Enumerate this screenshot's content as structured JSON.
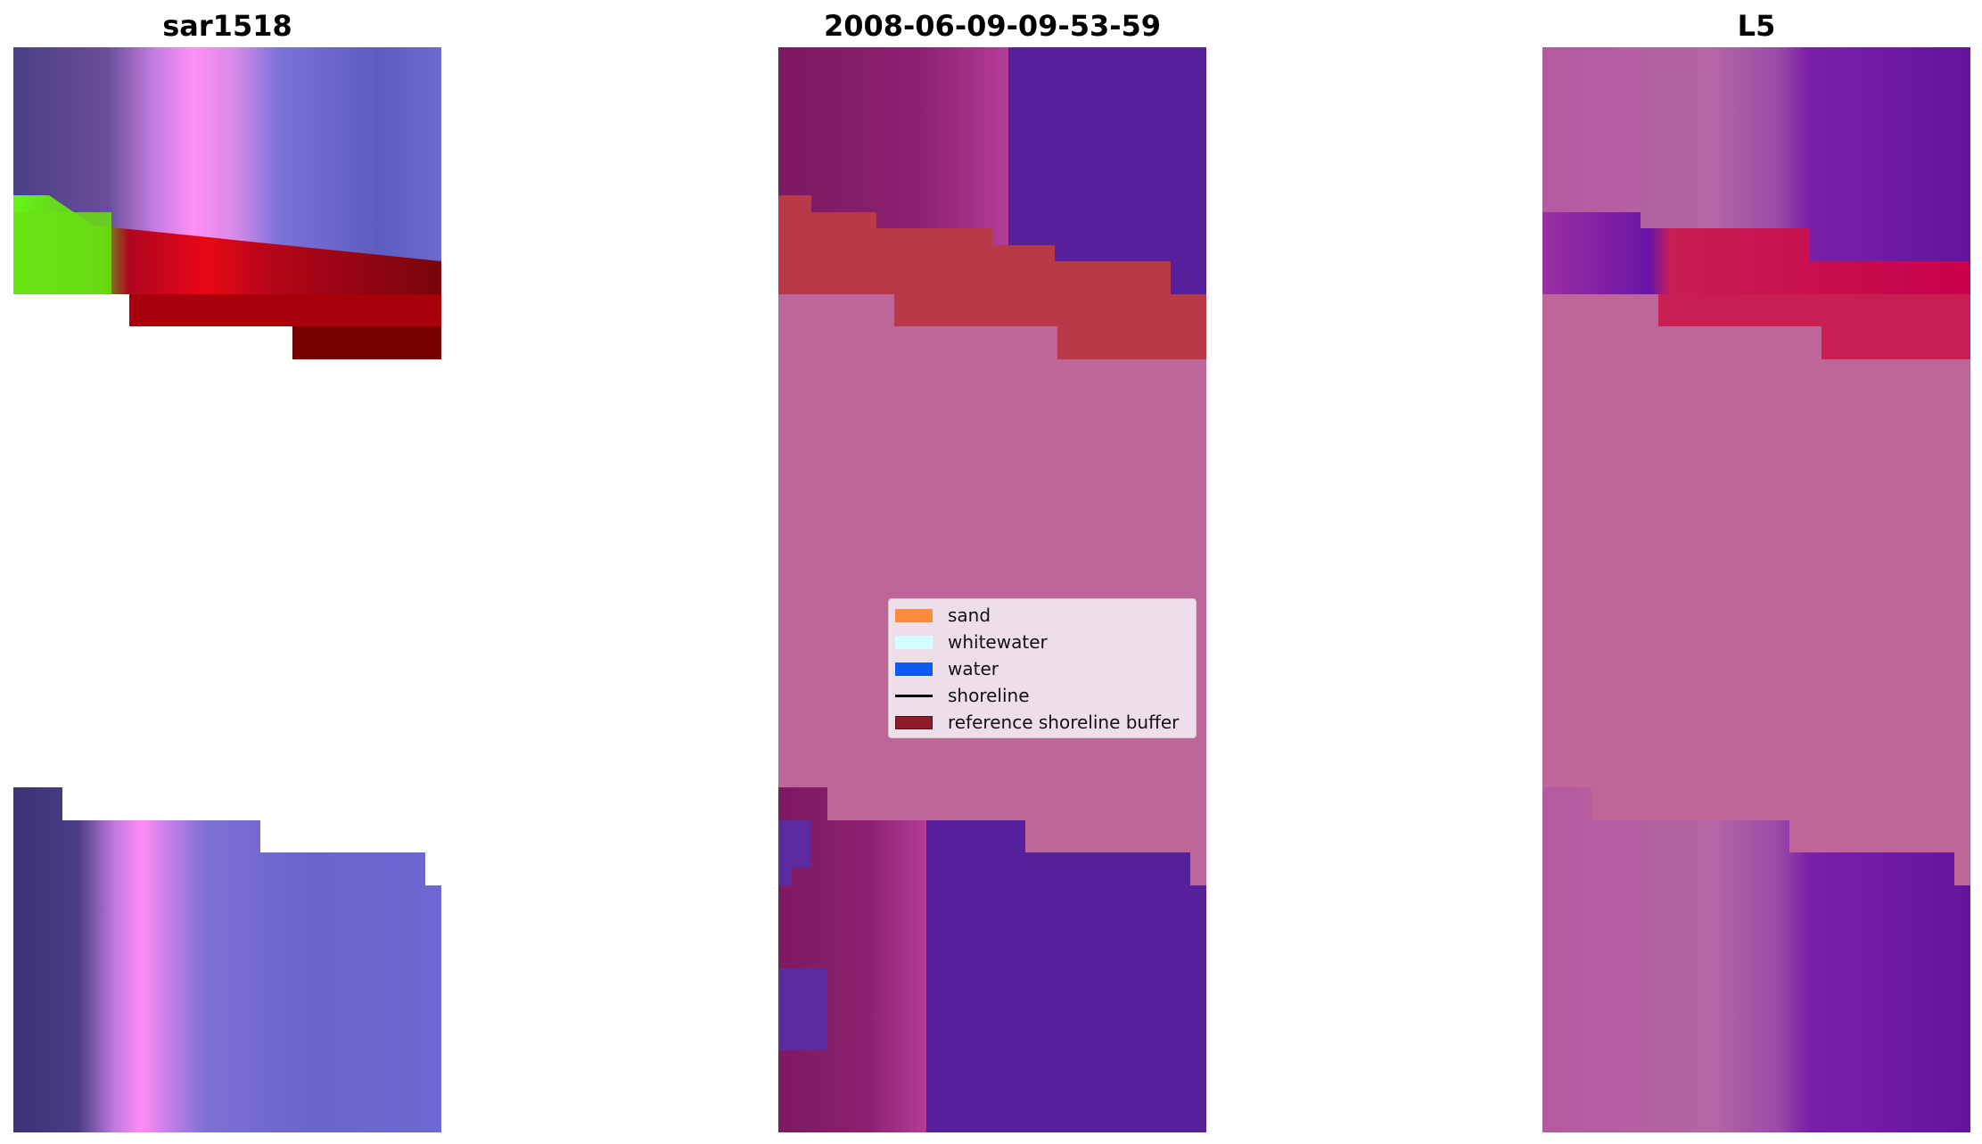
{
  "panels": [
    {
      "title": "sar1518"
    },
    {
      "title": "2008-06-09-09-53-59"
    },
    {
      "title": "L5"
    }
  ],
  "legend": {
    "items": [
      {
        "label": "sand",
        "color": "#ff8c3c"
      },
      {
        "label": "whitewater",
        "color": "#d2ffff"
      },
      {
        "label": "water",
        "color": "#0a5cf0"
      },
      {
        "label": "shoreline",
        "color": "#000000"
      },
      {
        "label": "reference shoreline buffer",
        "color": "#8c1e2a"
      }
    ]
  },
  "colors": {
    "classified_background": "#bd6697",
    "classified_water": "#55209a",
    "classified_buffer": "#b83a48",
    "classified_sand_left": "#86206a",
    "l5_background": "#bd6697",
    "l5_water": "#6410a0",
    "l5_buffer": "#c81e52",
    "sar_blue": "#6e6ad2",
    "sar_pink": "#ff8cf0",
    "sar_red": "#e00000",
    "sar_darkred": "#7a0000",
    "sar_green": "#66ff10"
  }
}
